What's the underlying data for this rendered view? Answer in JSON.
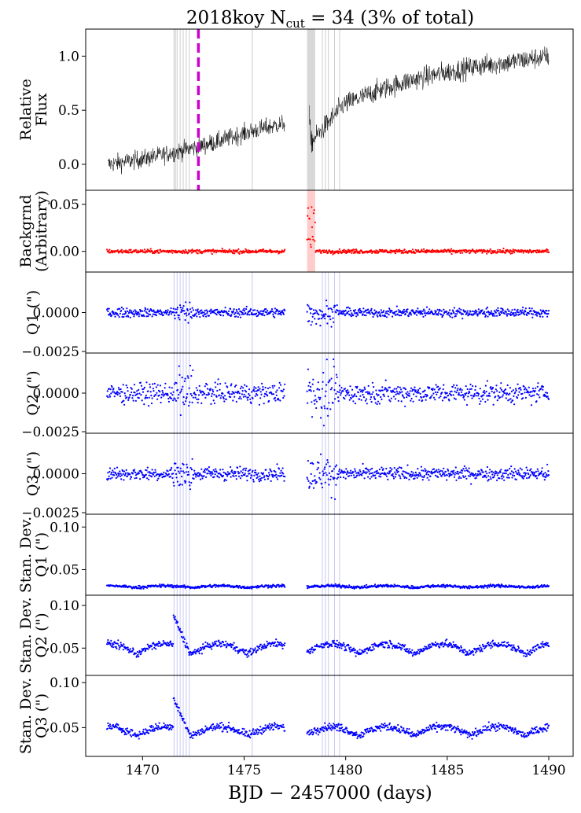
{
  "figure": {
    "title": "2018koy  N",
    "title_sub": "cut",
    "title_rest": " = 34 (3% of total)",
    "xlabel": "BJD − 2457000 (days)",
    "x_ticks": [
      "1470",
      "1475",
      "1480",
      "1485",
      "1490"
    ]
  },
  "chart_data": [
    {
      "type": "line",
      "panel": "flux",
      "ylabel": [
        "Relative",
        "Flux"
      ],
      "xlim": [
        1467.2,
        1491.2
      ],
      "ylim": [
        -0.24,
        1.25
      ],
      "y_ticks": [
        "0.0",
        "0.5",
        "1.0"
      ],
      "series": [
        {
          "name": "Relative Flux",
          "color": "#000000",
          "segments": [
            {
              "x_start": 1468.3,
              "x_end": 1477.0,
              "trend": [
                0.0,
                0.05,
                0.12,
                0.2,
                0.3,
                0.38
              ],
              "scatter": 0.06
            },
            {
              "x_start": 1478.2,
              "x_end": 1490.0,
              "trend": [
                0.18,
                0.55,
                0.68,
                0.78,
                0.85,
                0.91,
                0.95,
                1.0
              ],
              "scatter": 0.07
            }
          ]
        }
      ],
      "marker_line": {
        "x": 1472.75,
        "color": "#cc00cc"
      }
    },
    {
      "type": "scatter",
      "panel": "background",
      "ylabel": [
        "Backgrnd",
        "(Arbitrary)"
      ],
      "ylim": [
        -0.022,
        0.065
      ],
      "y_ticks": [
        "0.00",
        "0.05"
      ],
      "series": [
        {
          "name": "Background",
          "color": "#ff0000",
          "level": 0.0,
          "scatter": 0.0015,
          "spike_x": [
            1478.1,
            1478.5
          ],
          "spike_max": 0.05
        }
      ],
      "shaded_region": {
        "x": [
          1478.1,
          1478.5
        ],
        "color": "#ffcccc"
      }
    },
    {
      "type": "scatter",
      "panel": "Q1",
      "ylabel": [
        "Q1 (\")"
      ],
      "ylim": [
        -0.0026,
        0.0026
      ],
      "y_ticks": [
        "−0.0025",
        "0.0000"
      ],
      "series": [
        {
          "name": "Q1",
          "color": "#0000ff",
          "level": 0.0,
          "scatter": 0.0002
        }
      ]
    },
    {
      "type": "scatter",
      "panel": "Q2",
      "ylabel": [
        "Q2 (\")"
      ],
      "ylim": [
        -0.0026,
        0.0026
      ],
      "y_ticks": [
        "−0.0025",
        "0.0000"
      ],
      "series": [
        {
          "name": "Q2",
          "color": "#0000ff",
          "level": 0.0,
          "scatter": 0.00045
        }
      ]
    },
    {
      "type": "scatter",
      "panel": "Q3",
      "ylabel": [
        "Q3 (\")"
      ],
      "ylim": [
        -0.0026,
        0.0026
      ],
      "y_ticks": [
        "−0.0025",
        "0.0000"
      ],
      "series": [
        {
          "name": "Q3",
          "color": "#0000ff",
          "level": 0.0,
          "scatter": 0.0003
        }
      ]
    },
    {
      "type": "scatter",
      "panel": "std_Q1",
      "ylabel": [
        "Stan. Dev.",
        "Q1 (\")"
      ],
      "ylim": [
        0.02,
        0.115
      ],
      "y_ticks": [
        "0.05",
        "0.10"
      ],
      "series": [
        {
          "name": "Stan. Dev. Q1",
          "color": "#0000ff",
          "level": 0.029,
          "amp": 0.002,
          "scatter": 0.0012
        }
      ]
    },
    {
      "type": "scatter",
      "panel": "std_Q2",
      "ylabel": [
        "Stan. Dev.",
        "Q2 (\")"
      ],
      "ylim": [
        0.018,
        0.112
      ],
      "y_ticks": [
        "0.05",
        "0.10"
      ],
      "series": [
        {
          "name": "Stan. Dev. Q2",
          "color": "#0000ff",
          "level": 0.043,
          "amp": 0.012,
          "scatter": 0.003
        }
      ]
    },
    {
      "type": "scatter",
      "panel": "std_Q3",
      "ylabel": [
        "Stan. Dev.",
        "Q3 (\")"
      ],
      "ylim": [
        0.018,
        0.108
      ],
      "y_ticks": [
        "0.05",
        "0.10"
      ],
      "series": [
        {
          "name": "Stan. Dev. Q3",
          "color": "#0000ff",
          "level": 0.041,
          "amp": 0.01,
          "scatter": 0.003
        }
      ]
    }
  ],
  "cut_lines": {
    "gray_x": [
      1471.55,
      1471.62,
      1471.7,
      1471.85,
      1472.0,
      1472.15,
      1472.3,
      1475.4,
      1478.15,
      1478.3,
      1478.45,
      1478.85,
      1479.0,
      1479.15,
      1479.45,
      1479.7
    ],
    "blue_x": [
      1471.55,
      1471.7,
      1471.85,
      1472.0,
      1472.15,
      1472.3,
      1475.4,
      1478.85,
      1479.0,
      1479.15,
      1479.45,
      1479.7
    ]
  }
}
